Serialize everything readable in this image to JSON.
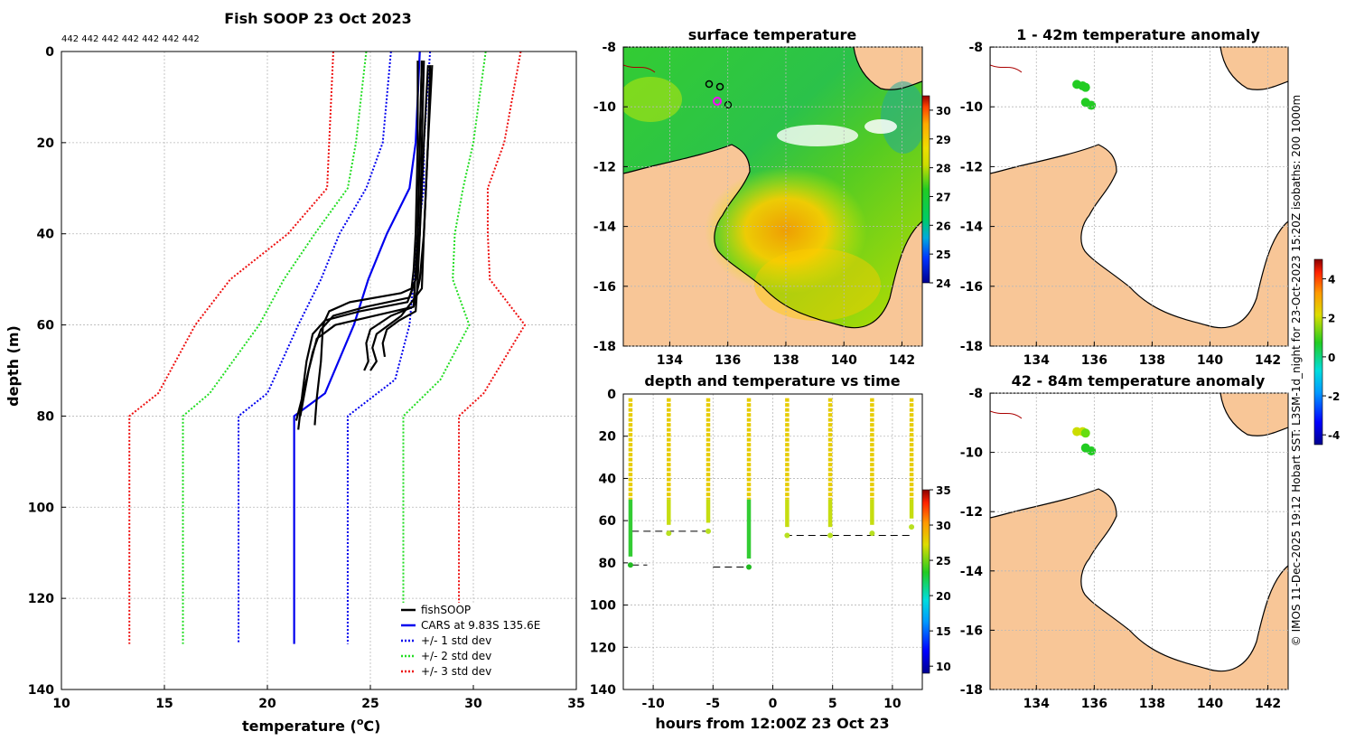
{
  "colors": {
    "fishsoop": "#000000",
    "cars": "#0000ee",
    "std1": "#0000ee",
    "std2": "#22dd22",
    "std3": "#ee1111",
    "land": "#f8c697",
    "water_white": "#ffffff"
  },
  "chart_data": [
    {
      "id": "profile",
      "type": "line",
      "title": "Fish SOOP 23 Oct 2023",
      "id_labels": "442 442 442 442 442 442 442",
      "xlabel_main": "temperature (",
      "xlabel_sup": "o",
      "xlabel_end": "C)",
      "ylabel": "depth (m)",
      "xlim": [
        10,
        35
      ],
      "ylim": [
        140,
        0
      ],
      "xticks": [
        "10",
        "15",
        "20",
        "25",
        "30",
        "35"
      ],
      "yticks": [
        "0",
        "20",
        "40",
        "60",
        "80",
        "100",
        "120",
        "140"
      ],
      "legend": [
        "fishSOOP",
        "CARS at 9.83S 135.6E",
        "+/- 1 std dev",
        "+/- 2 std dev",
        "+/- 3 std dev"
      ],
      "series": [
        {
          "name": "CARS at 9.83S 135.6E",
          "t": [
            27.4,
            27.2,
            26.9,
            25.8,
            24.9,
            24.2,
            22.8,
            21.3,
            21.3
          ],
          "d": [
            0,
            20,
            30,
            40,
            50,
            60,
            75,
            80,
            130
          ]
        },
        {
          "name": "+1 std dev",
          "t": [
            27.9,
            27.6,
            27.6,
            27.3,
            27.1,
            26.9,
            26.2,
            23.9,
            23.9
          ],
          "d": [
            0,
            20,
            30,
            40,
            50,
            60,
            72,
            80,
            130
          ]
        },
        {
          "name": "-1 std dev",
          "t": [
            26.0,
            25.6,
            24.8,
            23.5,
            22.6,
            21.5,
            20.0,
            18.6,
            18.6
          ],
          "d": [
            0,
            20,
            30,
            40,
            50,
            60,
            75,
            80,
            130
          ]
        },
        {
          "name": "+2 std dev",
          "t": [
            30.6,
            30.0,
            29.5,
            29.1,
            29.0,
            29.8,
            28.4,
            26.6,
            26.6
          ],
          "d": [
            0,
            20,
            30,
            40,
            50,
            60,
            72,
            80,
            130
          ]
        },
        {
          "name": "-2 std dev",
          "t": [
            24.8,
            24.3,
            23.9,
            22.3,
            20.8,
            19.6,
            17.2,
            15.9,
            15.9
          ],
          "d": [
            0,
            20,
            30,
            40,
            50,
            60,
            75,
            80,
            130
          ]
        },
        {
          "name": "+3 std dev",
          "t": [
            32.3,
            31.5,
            30.7,
            30.7,
            30.8,
            32.5,
            30.5,
            29.3,
            29.3
          ],
          "d": [
            0,
            20,
            30,
            40,
            50,
            60,
            75,
            80,
            130
          ]
        },
        {
          "name": "-3 std dev",
          "t": [
            23.2,
            23.0,
            22.9,
            21.0,
            18.2,
            16.5,
            14.7,
            13.3,
            13.3
          ],
          "d": [
            0,
            20,
            30,
            40,
            50,
            60,
            75,
            80,
            130
          ]
        }
      ],
      "fishsoop_casts": [
        {
          "t": [
            27.3,
            27.3,
            27.2,
            27.1,
            27.0,
            26.5,
            24.0,
            23.0,
            22.7,
            22.6,
            22.4,
            22.3
          ],
          "d": [
            2,
            20,
            40,
            48,
            52,
            53,
            55,
            57,
            60,
            68,
            76,
            82
          ]
        },
        {
          "t": [
            27.6,
            27.5,
            27.4,
            27.2,
            26.8,
            24.5,
            22.8,
            22.2,
            21.9,
            21.7,
            21.5
          ],
          "d": [
            2,
            20,
            40,
            50,
            55,
            57,
            59,
            62,
            68,
            75,
            83
          ]
        },
        {
          "t": [
            27.9,
            27.8,
            27.6,
            27.4,
            27.1,
            25.2,
            23.3,
            22.4,
            22.0,
            21.6
          ],
          "d": [
            3,
            20,
            40,
            50,
            56,
            58,
            60,
            63,
            70,
            80
          ]
        },
        {
          "t": [
            27.5,
            27.4,
            27.3,
            27.2,
            27.1,
            26.0,
            25.0,
            24.8,
            24.9,
            24.7
          ],
          "d": [
            2,
            20,
            40,
            48,
            56,
            58,
            61,
            64,
            68,
            70
          ]
        },
        {
          "t": [
            27.8,
            27.6,
            27.4,
            27.3,
            27.2,
            26.4,
            25.8,
            25.6,
            25.7
          ],
          "d": [
            3,
            20,
            40,
            50,
            57,
            59,
            61,
            64,
            67
          ]
        },
        {
          "t": [
            27.5,
            27.4,
            27.3,
            27.2,
            26.9,
            24.8,
            23.2,
            22.6,
            22.2,
            21.8,
            21.4
          ],
          "d": [
            2,
            20,
            40,
            50,
            54,
            56,
            58,
            61,
            66,
            74,
            81
          ]
        },
        {
          "t": [
            28.0,
            27.8,
            27.6,
            27.5,
            26.5,
            25.3,
            25.1,
            25.3,
            25.0
          ],
          "d": [
            3,
            20,
            40,
            52,
            58,
            62,
            65,
            68,
            70
          ]
        }
      ]
    },
    {
      "id": "sst_map",
      "type": "heatmap",
      "title": "surface temperature",
      "xticks": [
        "134",
        "136",
        "138",
        "140",
        "142"
      ],
      "yticks": [
        "-8",
        "-10",
        "-12",
        "-14",
        "-16",
        "-18"
      ],
      "colorbar_ticks": [
        "24",
        "25",
        "26",
        "27",
        "28",
        "29",
        "30"
      ],
      "colorbar_range": [
        24,
        30.5
      ]
    },
    {
      "id": "time_series",
      "type": "scatter",
      "title": "depth and temperature vs time",
      "xlabel": "hours from 12:00Z 23 Oct 23",
      "xticks": [
        "-10",
        "-5",
        "0",
        "5",
        "10"
      ],
      "yticks": [
        "0",
        "20",
        "40",
        "60",
        "80",
        "100",
        "120",
        "140"
      ],
      "xlim": [
        -12.5,
        12.5
      ],
      "ylim": [
        140,
        0
      ],
      "colorbar_ticks": [
        "10",
        "15",
        "20",
        "25",
        "30",
        "35"
      ],
      "colorbar_range": [
        9,
        35
      ],
      "bottom_depth_segments": [
        {
          "x": [
            -11.8,
            -10.5
          ],
          "d": 81
        },
        {
          "x": [
            -11.8,
            -5.0
          ],
          "d": 65
        },
        {
          "x": [
            -5.0,
            -1.8
          ],
          "d": 82
        },
        {
          "x": [
            1.0,
            11.8
          ],
          "d": 67
        }
      ],
      "casts": [
        {
          "x": -11.9,
          "bottom": 81
        },
        {
          "x": -8.7,
          "bottom": 66
        },
        {
          "x": -5.4,
          "bottom": 65
        },
        {
          "x": -2.0,
          "bottom": 82
        },
        {
          "x": 1.2,
          "bottom": 67
        },
        {
          "x": 4.8,
          "bottom": 67
        },
        {
          "x": 8.3,
          "bottom": 66
        },
        {
          "x": 11.6,
          "bottom": 63
        }
      ]
    },
    {
      "id": "anom_1_42",
      "type": "scatter",
      "title": "1 - 42m temperature anomaly",
      "xticks": [
        "134",
        "136",
        "138",
        "140",
        "142"
      ],
      "yticks": [
        "-8",
        "-10",
        "-12",
        "-14",
        "-16",
        "-18"
      ],
      "points": [
        {
          "lon": 135.4,
          "lat": -9.25,
          "anom": 0.3
        },
        {
          "lon": 135.6,
          "lat": -9.3,
          "anom": 0.2
        },
        {
          "lon": 135.7,
          "lat": -9.35,
          "anom": 0.3
        },
        {
          "lon": 135.7,
          "lat": -9.85,
          "anom": 0.2
        },
        {
          "lon": 135.9,
          "lat": -9.95,
          "anom": 0.1
        }
      ]
    },
    {
      "id": "anom_42_84",
      "type": "scatter",
      "title": "42 - 84m temperature anomaly",
      "xticks": [
        "134",
        "136",
        "138",
        "140",
        "142"
      ],
      "yticks": [
        "-8",
        "-10",
        "-12",
        "-14",
        "-16",
        "-18"
      ],
      "colorbar_ticks": [
        "-4",
        "-2",
        "0",
        "2",
        "4"
      ],
      "colorbar_range": [
        -4.5,
        5
      ],
      "points": [
        {
          "lon": 135.4,
          "lat": -9.3,
          "anom": 1.4
        },
        {
          "lon": 135.6,
          "lat": -9.3,
          "anom": 1.3
        },
        {
          "lon": 135.7,
          "lat": -9.35,
          "anom": 0.8
        },
        {
          "lon": 135.7,
          "lat": -9.85,
          "anom": 0.3
        },
        {
          "lon": 135.9,
          "lat": -9.95,
          "anom": 0.2
        }
      ]
    }
  ],
  "side_note": "© IMOS 11-Dec-2025 19:12 Hobart SST: L3SM-1d_night for 23-Oct-2023 15:20Z isobaths: 200  1000m"
}
